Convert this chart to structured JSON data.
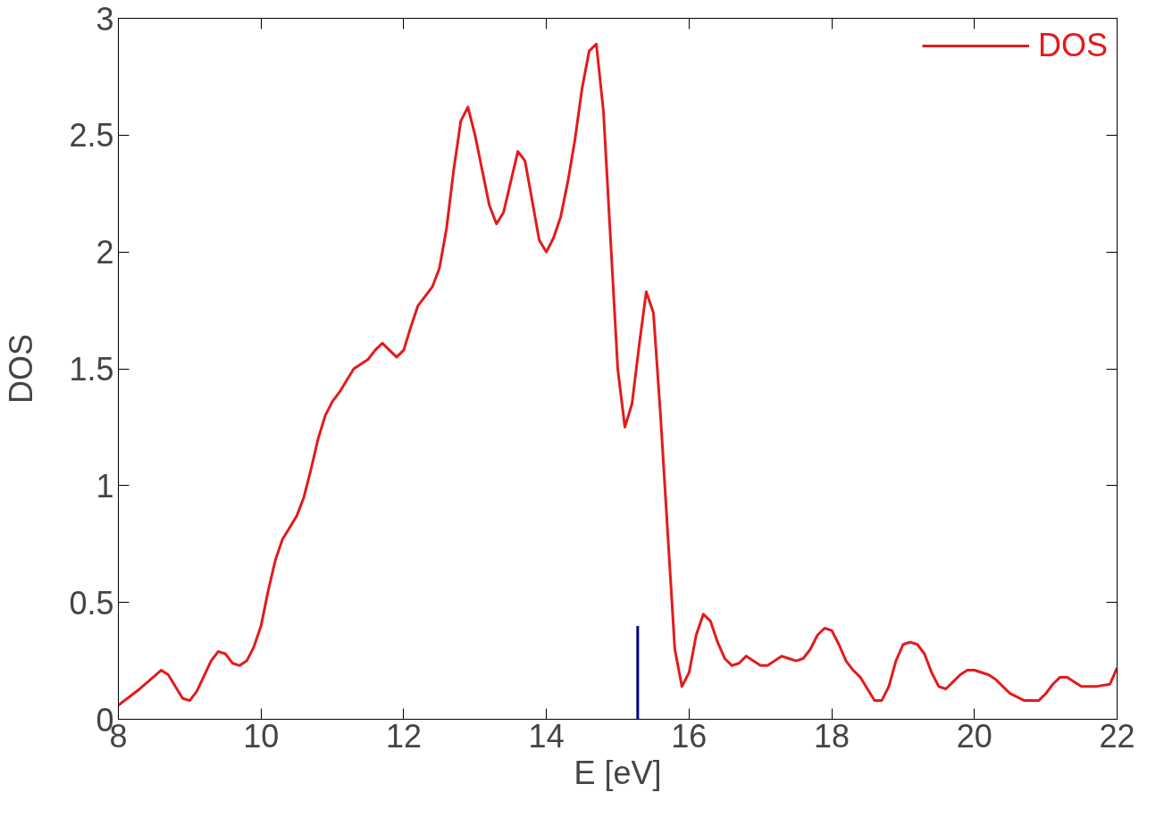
{
  "chart_data": {
    "type": "line",
    "xlabel": "E [eV]",
    "ylabel": "DOS",
    "xlim": [
      8,
      22
    ],
    "ylim": [
      0,
      3
    ],
    "xticks": [
      8,
      10,
      12,
      14,
      16,
      18,
      20,
      22
    ],
    "yticks": [
      0,
      0.5,
      1,
      1.5,
      2,
      2.5,
      3
    ],
    "grid": false,
    "legend": "top right",
    "marker": "none",
    "line_style": "solid",
    "ref_lines": [
      {
        "axis": "x",
        "value": 15.28,
        "color": "#000080"
      }
    ],
    "series": [
      {
        "name": "DOS",
        "color": "#e41a1c",
        "x": [
          8.0,
          8.3,
          8.6,
          8.7,
          8.9,
          9.0,
          9.1,
          9.3,
          9.4,
          9.5,
          9.6,
          9.7,
          9.8,
          9.9,
          10.0,
          10.1,
          10.2,
          10.3,
          10.4,
          10.5,
          10.6,
          10.7,
          10.8,
          10.9,
          11.0,
          11.1,
          11.2,
          11.3,
          11.5,
          11.6,
          11.7,
          11.8,
          11.9,
          12.0,
          12.1,
          12.2,
          12.3,
          12.4,
          12.5,
          12.6,
          12.7,
          12.8,
          12.9,
          13.0,
          13.1,
          13.2,
          13.3,
          13.4,
          13.5,
          13.6,
          13.7,
          13.8,
          13.9,
          14.0,
          14.1,
          14.2,
          14.3,
          14.4,
          14.5,
          14.6,
          14.7,
          14.8,
          14.9,
          15.0,
          15.1,
          15.2,
          15.3,
          15.4,
          15.5,
          15.6,
          15.7,
          15.8,
          15.9,
          16.0,
          16.1,
          16.2,
          16.3,
          16.4,
          16.5,
          16.6,
          16.7,
          16.8,
          16.9,
          17.0,
          17.1,
          17.2,
          17.3,
          17.4,
          17.5,
          17.6,
          17.7,
          17.8,
          17.9,
          18.0,
          18.1,
          18.2,
          18.3,
          18.4,
          18.5,
          18.6,
          18.7,
          18.8,
          18.9,
          19.0,
          19.1,
          19.2,
          19.3,
          19.4,
          19.5,
          19.6,
          19.7,
          19.8,
          19.9,
          20.0,
          20.2,
          20.3,
          20.4,
          20.5,
          20.7,
          20.9,
          21.0,
          21.1,
          21.2,
          21.3,
          21.4,
          21.5,
          21.7,
          21.9,
          22.0
        ],
        "values": [
          0.06,
          0.13,
          0.21,
          0.19,
          0.09,
          0.08,
          0.12,
          0.25,
          0.29,
          0.28,
          0.24,
          0.23,
          0.25,
          0.31,
          0.4,
          0.55,
          0.68,
          0.77,
          0.82,
          0.87,
          0.95,
          1.07,
          1.2,
          1.3,
          1.36,
          1.4,
          1.45,
          1.5,
          1.54,
          1.58,
          1.61,
          1.58,
          1.55,
          1.58,
          1.68,
          1.77,
          1.81,
          1.85,
          1.93,
          2.1,
          2.35,
          2.56,
          2.62,
          2.5,
          2.35,
          2.2,
          2.12,
          2.17,
          2.3,
          2.43,
          2.39,
          2.22,
          2.05,
          2.0,
          2.06,
          2.15,
          2.3,
          2.48,
          2.7,
          2.86,
          2.89,
          2.6,
          2.05,
          1.5,
          1.25,
          1.35,
          1.6,
          1.83,
          1.74,
          1.3,
          0.8,
          0.3,
          0.14,
          0.2,
          0.36,
          0.45,
          0.42,
          0.33,
          0.26,
          0.23,
          0.24,
          0.27,
          0.25,
          0.23,
          0.23,
          0.25,
          0.27,
          0.26,
          0.25,
          0.26,
          0.3,
          0.36,
          0.39,
          0.38,
          0.32,
          0.25,
          0.21,
          0.18,
          0.13,
          0.08,
          0.08,
          0.14,
          0.25,
          0.32,
          0.33,
          0.32,
          0.28,
          0.2,
          0.14,
          0.13,
          0.16,
          0.19,
          0.21,
          0.21,
          0.19,
          0.17,
          0.14,
          0.11,
          0.08,
          0.08,
          0.11,
          0.15,
          0.18,
          0.18,
          0.16,
          0.14,
          0.14,
          0.15,
          0.22
        ]
      }
    ]
  }
}
